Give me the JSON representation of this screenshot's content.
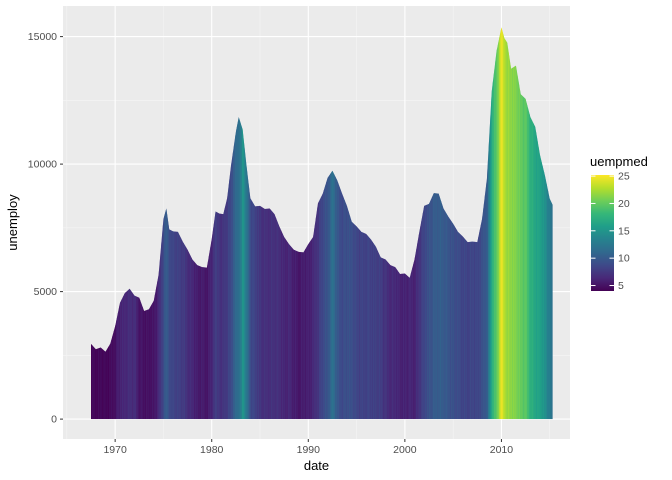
{
  "chart_data": {
    "type": "bar",
    "xlabel": "date",
    "ylabel": "unemploy",
    "xlim": [
      1964.6,
      2017.1
    ],
    "ylim": [
      -780,
      16200
    ],
    "x_ticks": [
      1970,
      1980,
      1990,
      2000,
      2010
    ],
    "x_tick_labels": [
      "1970",
      "1980",
      "1990",
      "2000",
      "2010"
    ],
    "y_ticks": [
      0,
      5000,
      10000,
      15000
    ],
    "y_tick_labels": [
      "0",
      "5000",
      "10000",
      "15000"
    ],
    "grid": true,
    "legend": {
      "title": "uempmed",
      "position": "right",
      "range": [
        4,
        25.2
      ],
      "breaks": [
        5,
        10,
        15,
        20,
        25
      ],
      "break_labels": [
        "5",
        "10",
        "15",
        "20",
        "25"
      ],
      "colors": [
        "#440154",
        "#482878",
        "#3e4989",
        "#31688e",
        "#26828e",
        "#1f9e89",
        "#35b779",
        "#6ece58",
        "#b5de2b",
        "#fde725"
      ]
    },
    "x": [
      1967.5,
      1968,
      1968.5,
      1969,
      1969.5,
      1970,
      1970.5,
      1971,
      1971.5,
      1972,
      1972.5,
      1973,
      1973.5,
      1974,
      1974.5,
      1975,
      1975.3,
      1975.6,
      1976,
      1976.5,
      1977,
      1977.5,
      1978,
      1978.5,
      1979,
      1979.5,
      1980,
      1980.4,
      1980.8,
      1981.2,
      1981.6,
      1982,
      1982.5,
      1982.8,
      1983.2,
      1983.6,
      1984,
      1984.5,
      1985,
      1985.5,
      1986,
      1986.5,
      1987,
      1987.5,
      1988,
      1988.5,
      1989,
      1989.5,
      1990,
      1990.5,
      1991,
      1991.5,
      1992,
      1992.5,
      1993,
      1993.5,
      1994,
      1994.5,
      1995,
      1995.5,
      1996,
      1996.5,
      1997,
      1997.5,
      1998,
      1998.5,
      1999,
      1999.5,
      2000,
      2000.5,
      2001,
      2001.5,
      2002,
      2002.5,
      2003,
      2003.5,
      2004,
      2004.5,
      2005,
      2005.5,
      2006,
      2006.5,
      2007,
      2007.5,
      2008,
      2008.5,
      2009,
      2009.5,
      2010,
      2010.3,
      2010.6,
      2011,
      2011.5,
      2012,
      2012.5,
      2013,
      2013.5,
      2014,
      2014.5,
      2015,
      2015.3
    ],
    "y": [
      2950,
      2800,
      2750,
      2700,
      2900,
      3700,
      4500,
      5000,
      5050,
      4900,
      4700,
      4300,
      4250,
      4700,
      5600,
      7900,
      8200,
      7500,
      7300,
      7400,
      6900,
      6700,
      6200,
      6100,
      5900,
      6000,
      7000,
      8200,
      8000,
      8100,
      8600,
      10000,
      11200,
      11900,
      11300,
      10000,
      8600,
      8400,
      8300,
      8300,
      8200,
      8100,
      7500,
      7200,
      6800,
      6700,
      6500,
      6600,
      6800,
      7200,
      8400,
      8900,
      9400,
      9800,
      9300,
      8900,
      8300,
      7800,
      7500,
      7400,
      7200,
      7100,
      6700,
      6400,
      6200,
      6100,
      5900,
      5750,
      5650,
      5600,
      6200,
      7400,
      8300,
      8500,
      8800,
      8900,
      8200,
      8000,
      7600,
      7400,
      7100,
      7000,
      6900,
      7000,
      7800,
      9500,
      12800,
      14500,
      15300,
      15000,
      14700,
      13800,
      13800,
      12800,
      12500,
      11900,
      11400,
      10400,
      9500,
      8700,
      8400
    ],
    "color_values": [
      4.5,
      4.2,
      4.5,
      4.3,
      4.4,
      5.2,
      6.2,
      6.4,
      6.7,
      6.6,
      5.3,
      5.0,
      5.0,
      5.2,
      6.5,
      9.2,
      10.5,
      8.8,
      8.4,
      7.9,
      7.9,
      6.8,
      6.4,
      5.5,
      5.5,
      5.4,
      6.5,
      8.0,
      7.0,
      7.2,
      8.0,
      9.0,
      11.4,
      11.6,
      15.0,
      12.5,
      8.9,
      8.2,
      7.2,
      6.8,
      7.0,
      7.0,
      6.8,
      6.1,
      6.3,
      5.9,
      5.3,
      5.8,
      5.8,
      6.4,
      7.6,
      8.9,
      9.6,
      12.0,
      9.5,
      8.9,
      9.3,
      9.2,
      8.4,
      8.1,
      8.4,
      8.2,
      8.0,
      7.8,
      6.9,
      6.6,
      6.6,
      6.0,
      6.0,
      6.1,
      6.2,
      7.5,
      8.6,
      9.4,
      10.0,
      10.4,
      10.1,
      9.6,
      9.2,
      8.8,
      8.6,
      8.3,
      8.5,
      8.4,
      9.2,
      10.5,
      17.5,
      20.0,
      25.0,
      22.5,
      22.0,
      21.5,
      21.0,
      20.0,
      19.5,
      17.5,
      16.5,
      16.0,
      14.5,
      12.5,
      12.0
    ]
  }
}
